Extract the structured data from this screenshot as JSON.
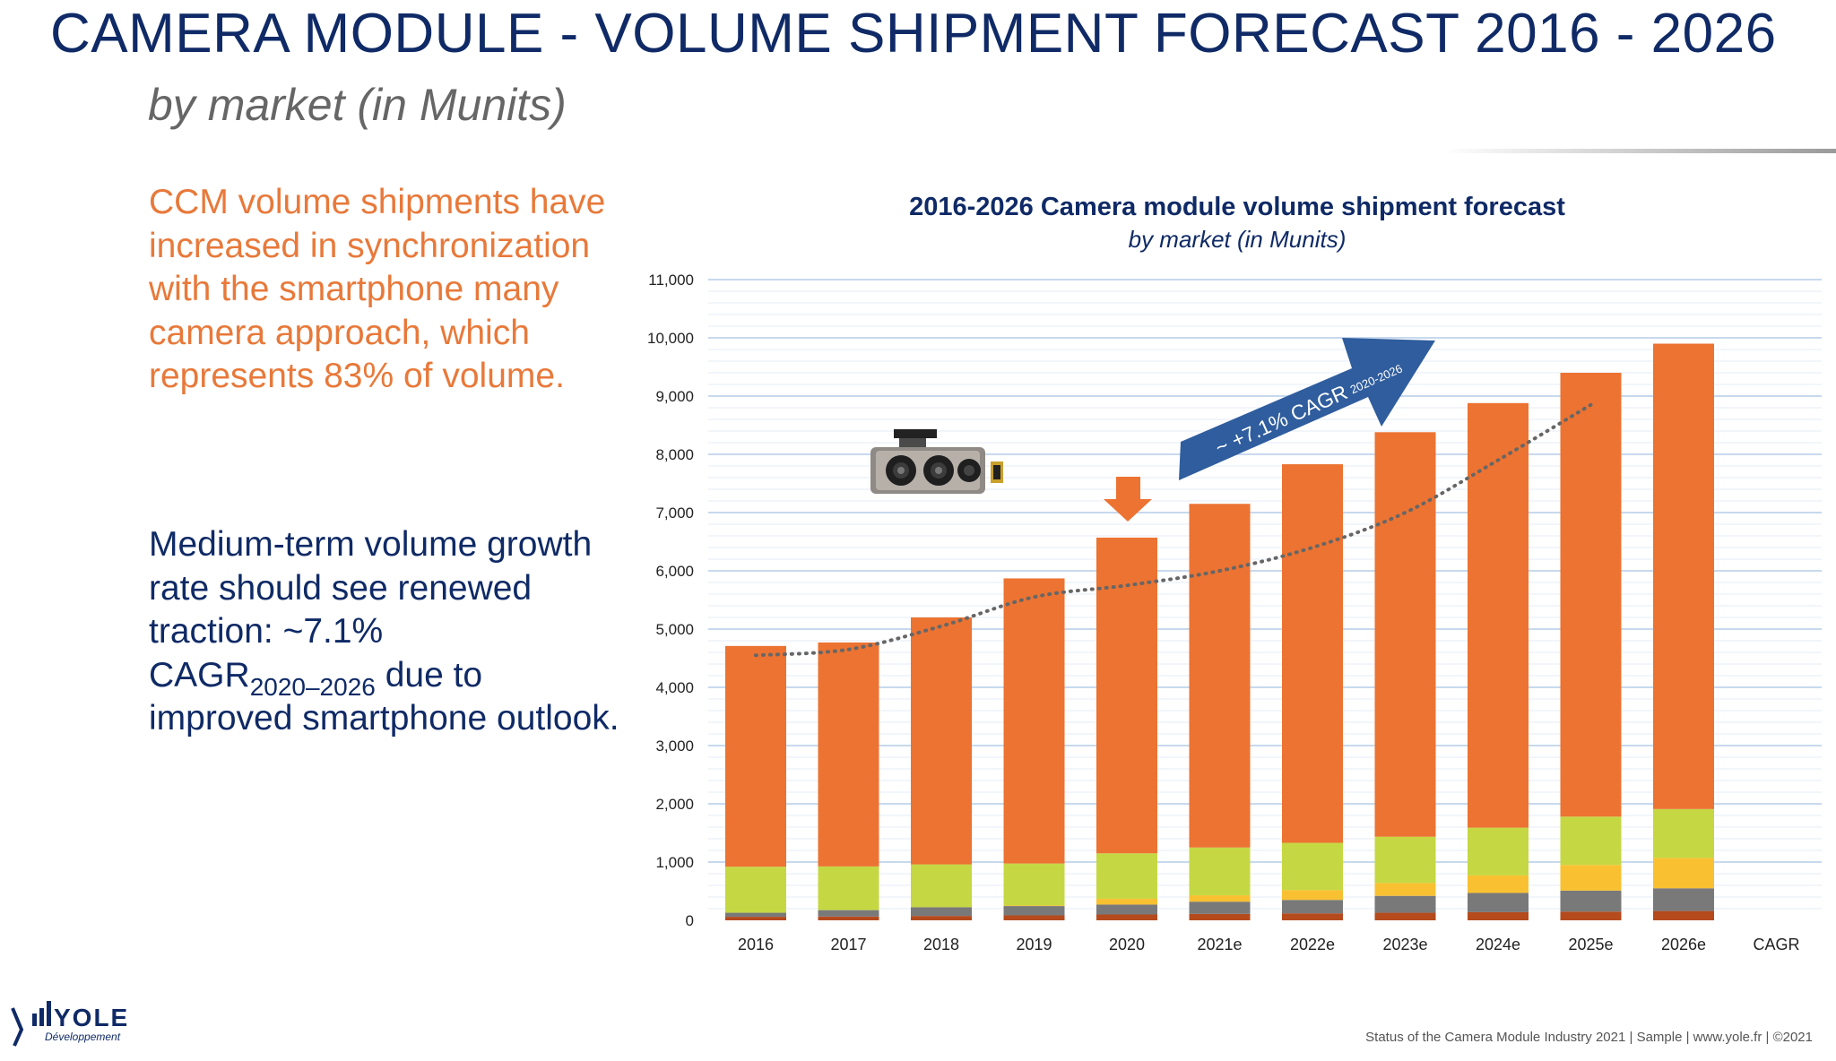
{
  "slide": {
    "title": "CAMERA MODULE - VOLUME SHIPMENT FORECAST 2016 - 2026",
    "subtitle": "by market (in Munits)",
    "para1": "CCM volume shipments have increased in synchronization with the smartphone many camera approach, which represents 83% of volume.",
    "para2": {
      "part1": "Medium-term volume growth rate should see renewed traction: ~7.1%",
      "cagr": "CAGR",
      "cagr_sub": "2020–2026",
      "part2": "due to improved smartphone outlook."
    },
    "footer": "Status of the Camera Module Industry 2021 | Sample | www.yole.fr | ©2021",
    "logo": {
      "text": "YOLE",
      "tagline": "Développement"
    }
  },
  "colors": {
    "title_blue": "#0f2a66",
    "orange_text": "#e8793a",
    "bar_orange": "#ec7332",
    "lime": "#c5d843",
    "yellow": "#f9c132",
    "gray": "#797979",
    "brown": "#b54a1d",
    "arrow_blue": "#2f5d9e"
  },
  "chart_data": {
    "type": "bar",
    "stacked": true,
    "title": "2016-2026 Camera module volume shipment forecast",
    "subtitle": "by market (in Munits)",
    "categories": [
      "2016",
      "2017",
      "2018",
      "2019",
      "2020",
      "2021e",
      "2022e",
      "2023e",
      "2024e",
      "2025e",
      "2026e"
    ],
    "extra_category": "CAGR",
    "ylim": [
      0,
      11000
    ],
    "yticks": [
      "0",
      "1,000",
      "2,000",
      "3,000",
      "4,000",
      "5,000",
      "6,000",
      "7,000",
      "8,000",
      "9,000",
      "10,000",
      "11,000"
    ],
    "grid": true,
    "series": [
      {
        "color": "#b54a1d",
        "values": [
          60,
          65,
          75,
          85,
          100,
          110,
          120,
          130,
          140,
          150,
          160
        ]
      },
      {
        "color": "#797979",
        "values": [
          70,
          110,
          150,
          160,
          170,
          210,
          230,
          290,
          330,
          360,
          390
        ]
      },
      {
        "color": "#f9c132",
        "values": [
          0,
          0,
          0,
          10,
          100,
          110,
          170,
          220,
          300,
          440,
          520
        ]
      },
      {
        "color": "#c5d843",
        "values": [
          790,
          750,
          735,
          720,
          780,
          820,
          810,
          795,
          820,
          830,
          840
        ]
      },
      {
        "color": "#ec7332",
        "values": [
          3790,
          3845,
          4240,
          4895,
          5420,
          5900,
          6500,
          6945,
          7290,
          7620,
          7990
        ]
      }
    ],
    "trend_line": {
      "style": "dotted",
      "x": [
        "2016",
        "2017",
        "2018",
        "2019",
        "2020",
        "2021e",
        "2022e",
        "2023e",
        "2024e",
        "2025e"
      ],
      "y": [
        4550,
        4650,
        5050,
        5550,
        5750,
        6000,
        6400,
        7000,
        7900,
        8850
      ]
    },
    "annotations": {
      "cagr_arrow": {
        "text": "~ +7.1% CAGR",
        "sub": "2020-2026"
      },
      "down_arrow_at": "2020"
    }
  }
}
